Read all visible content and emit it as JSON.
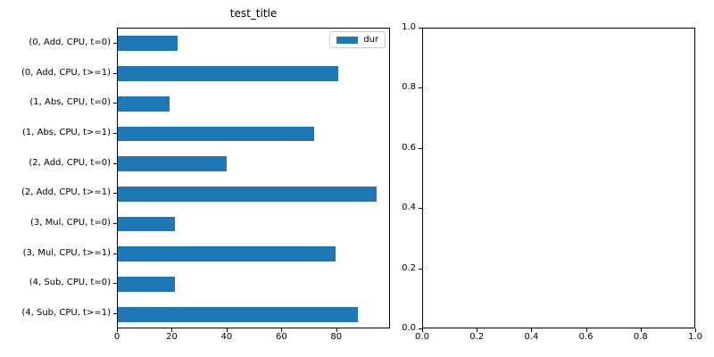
{
  "figure": {
    "background": "#ffffff",
    "spine_color": "#000000",
    "text_color": "#000000"
  },
  "chart_data": [
    {
      "type": "bar",
      "orientation": "horizontal",
      "title": "test_title",
      "xlabel": "",
      "ylabel": "",
      "categories": [
        "(0, Add, CPU, t=0)",
        "(0, Add, CPU, t>=1)",
        "(1, Abs, CPU, t=0)",
        "(1, Abs, CPU, t>=1)",
        "(2, Add, CPU, t=0)",
        "(2, Add, CPU, t>=1)",
        "(3, Mul, CPU, t=0)",
        "(3, Mul, CPU, t>=1)",
        "(4, Sub, CPU, t=0)",
        "(4, Sub, CPU, t>=1)"
      ],
      "series": [
        {
          "name": "dur",
          "color": "#1f77b4",
          "values": [
            22,
            81,
            19,
            72,
            40,
            95,
            21,
            80,
            21,
            88
          ]
        }
      ],
      "xlim": [
        0,
        99.6
      ],
      "xticks": [
        0,
        20,
        40,
        60,
        80
      ],
      "xtick_labels": [
        "0",
        "20",
        "40",
        "60",
        "80"
      ],
      "bar_height_fraction": 0.5,
      "grid": false,
      "legend": {
        "visible": true,
        "position": "upper right",
        "entries": [
          "dur"
        ]
      }
    },
    {
      "type": "empty",
      "title": "",
      "xlabel": "",
      "ylabel": "",
      "xlim": [
        0,
        1
      ],
      "ylim": [
        0,
        1
      ],
      "xticks": [
        0.0,
        0.2,
        0.4,
        0.6,
        0.8,
        1.0
      ],
      "yticks": [
        0.0,
        0.2,
        0.4,
        0.6,
        0.8,
        1.0
      ],
      "xtick_labels": [
        "0.0",
        "0.2",
        "0.4",
        "0.6",
        "0.8",
        "1.0"
      ],
      "ytick_labels": [
        "0.0",
        "0.2",
        "0.4",
        "0.6",
        "0.8",
        "1.0"
      ],
      "grid": false
    }
  ]
}
